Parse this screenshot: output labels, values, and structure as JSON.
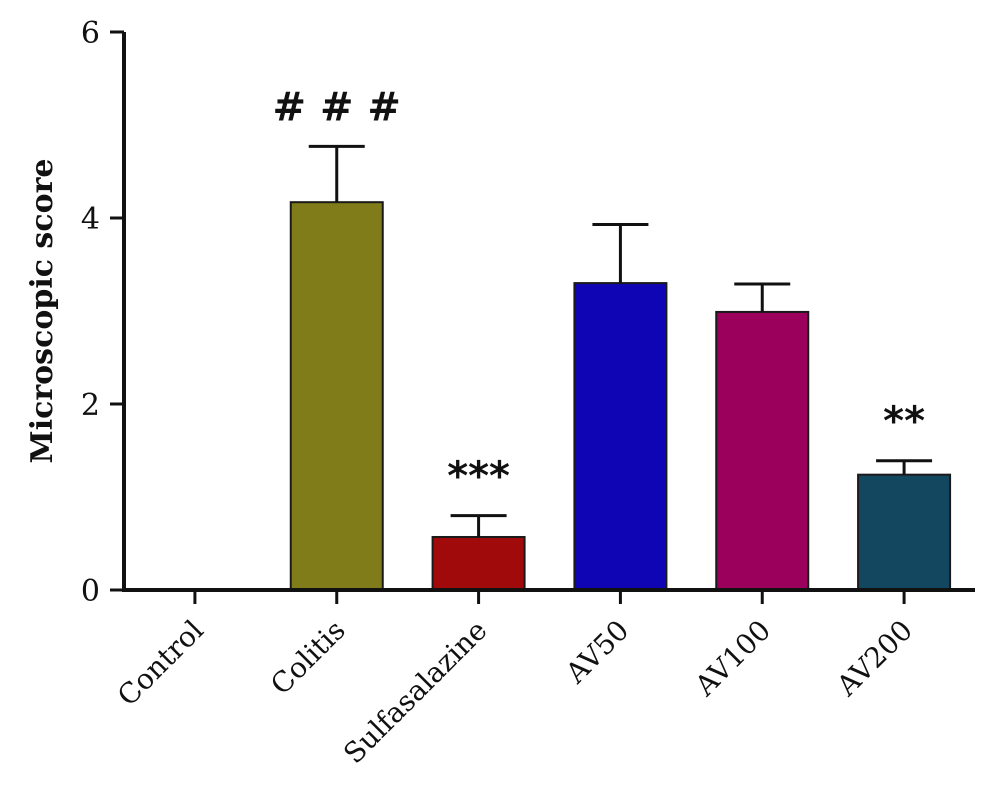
{
  "chart_data": {
    "type": "bar",
    "title": "",
    "xlabel": "",
    "ylabel": "Microscopic score",
    "ylim": [
      0,
      6
    ],
    "yticks": [
      0,
      2,
      4,
      6
    ],
    "grid": false,
    "legend": "none",
    "categories": [
      "Control",
      "Colitis",
      "Sulfasalazine",
      "AV50",
      "AV100",
      "AV200"
    ],
    "values": [
      0,
      4.17,
      0.57,
      3.3,
      2.99,
      1.24
    ],
    "error_plus": [
      0,
      0.6,
      0.23,
      0.63,
      0.3,
      0.15
    ],
    "annotations": [
      "",
      "# # #",
      "***",
      "",
      "",
      "**"
    ],
    "colors": [
      "#ffffff",
      "#807c1a",
      "#a00a0a",
      "#0f05b4",
      "#9b005c",
      "#13475f"
    ]
  }
}
